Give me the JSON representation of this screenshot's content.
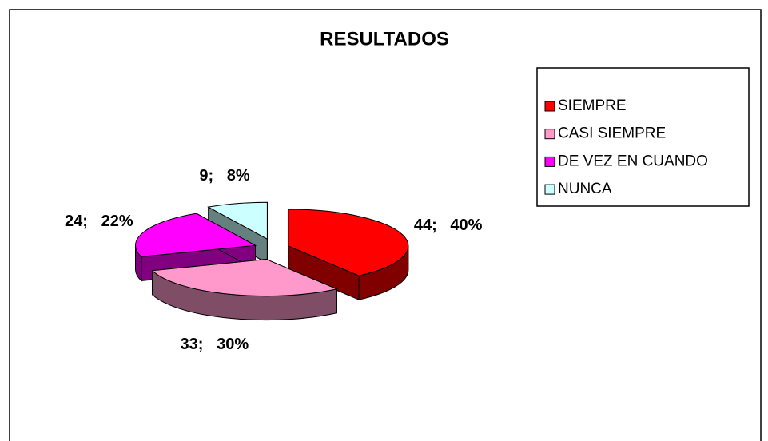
{
  "chart_data": {
    "type": "pie",
    "title": "RESULTADOS",
    "categories": [
      "SIEMPRE",
      "CASI SIEMPRE",
      "DE VEZ EN CUANDO",
      "NUNCA"
    ],
    "values": [
      44,
      33,
      24,
      9
    ],
    "value_labels": [
      "44;   40%",
      "33;   30%",
      "24;   22%",
      "9;   8%"
    ],
    "colors": [
      "#ff0000",
      "#ff99cc",
      "#ff00ff",
      "#ccffff"
    ],
    "legend": "right"
  }
}
